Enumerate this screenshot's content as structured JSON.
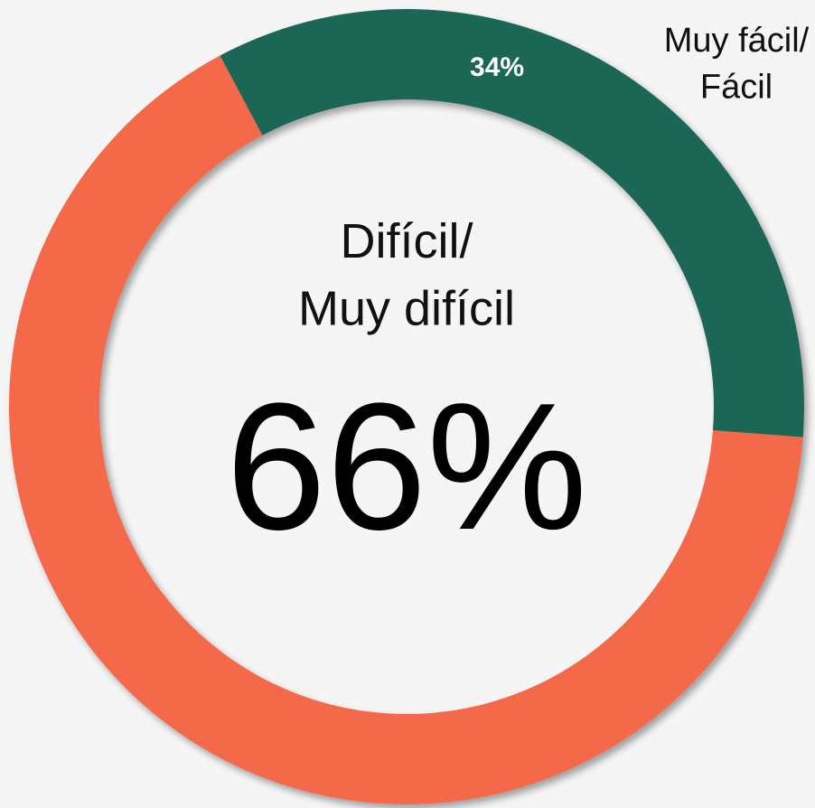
{
  "chart_data": {
    "type": "donut",
    "categories": [
      "Muy fácil/\nFácil",
      "Difícil/\nMuy difícil"
    ],
    "values": [
      34,
      66
    ],
    "value_labels": [
      "34%",
      "66%"
    ],
    "colors": [
      "#1e6657",
      "#f4694a"
    ]
  }
}
